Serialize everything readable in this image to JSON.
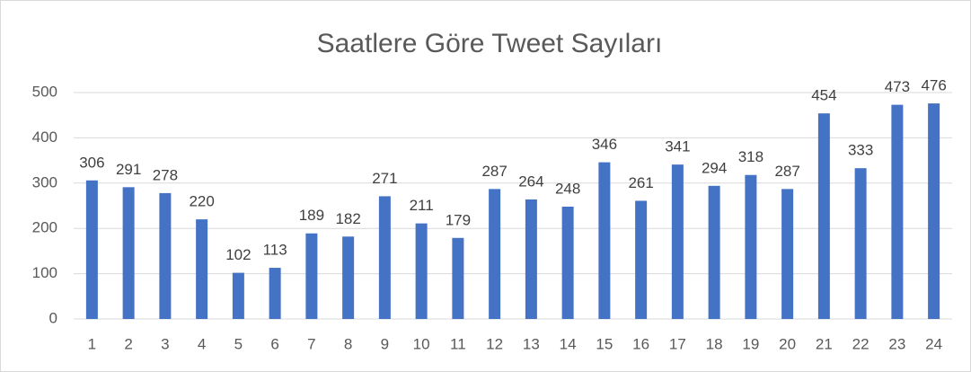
{
  "chart_data": {
    "type": "bar",
    "title": "Saatlere Göre Tweet Sayıları",
    "categories": [
      "1",
      "2",
      "3",
      "4",
      "5",
      "6",
      "7",
      "8",
      "9",
      "10",
      "11",
      "12",
      "13",
      "14",
      "15",
      "16",
      "17",
      "18",
      "19",
      "20",
      "21",
      "22",
      "23",
      "24"
    ],
    "values": [
      306,
      291,
      278,
      220,
      102,
      113,
      189,
      182,
      271,
      211,
      179,
      287,
      264,
      248,
      346,
      261,
      341,
      294,
      318,
      287,
      454,
      333,
      473,
      476
    ],
    "color": "#4472c4",
    "ylim": [
      0,
      500
    ],
    "yticks": [
      0,
      100,
      200,
      300,
      400,
      500
    ],
    "grid": true,
    "data_labels": true
  }
}
